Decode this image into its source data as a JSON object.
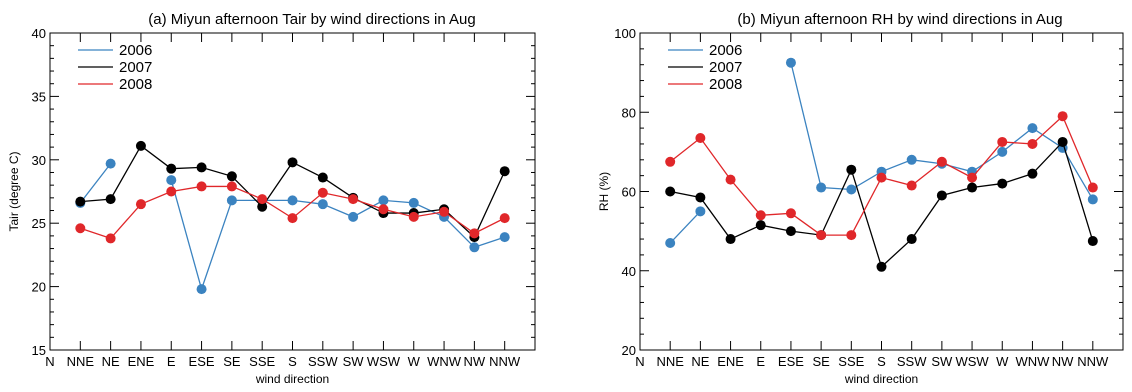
{
  "chart_data": [
    {
      "type": "line",
      "title": "(a) Miyun afternoon Tair by wind directions in Aug",
      "xlabel": "wind direction",
      "ylabel": "Tair (degree C)",
      "ylim": [
        15,
        40
      ],
      "yticks": [
        "15",
        "20",
        "25",
        "30",
        "35",
        "40"
      ],
      "categories": [
        "N",
        "NNE",
        "NE",
        "ENE",
        "E",
        "ESE",
        "SE",
        "SSE",
        "S",
        "SSW",
        "SW",
        "WSW",
        "W",
        "WNW",
        "NW",
        "NNW"
      ],
      "legend_position": "top-left",
      "grid": false,
      "series": [
        {
          "name": "2006",
          "color": "#3b83c0",
          "values": [
            null,
            26.6,
            29.7,
            null,
            28.4,
            19.8,
            26.8,
            26.8,
            26.8,
            26.5,
            25.5,
            26.8,
            26.6,
            25.5,
            23.1,
            23.9
          ]
        },
        {
          "name": "2007",
          "color": "#000000",
          "values": [
            null,
            26.7,
            26.9,
            31.1,
            29.3,
            29.4,
            28.7,
            26.3,
            29.8,
            28.6,
            27.0,
            25.8,
            25.8,
            26.1,
            23.9,
            29.1
          ]
        },
        {
          "name": "2008",
          "color": "#e0272a",
          "values": [
            null,
            24.6,
            23.8,
            26.5,
            27.5,
            27.9,
            27.9,
            26.9,
            25.4,
            27.4,
            26.9,
            26.1,
            25.5,
            25.9,
            24.2,
            25.4
          ]
        }
      ]
    },
    {
      "type": "line",
      "title": "(b) Miyun afternoon RH by wind directions in Aug",
      "xlabel": "wind direction",
      "ylabel": "RH (%)",
      "ylim": [
        20,
        100
      ],
      "yticks": [
        "20",
        "40",
        "60",
        "80",
        "100"
      ],
      "categories": [
        "N",
        "NNE",
        "NE",
        "ENE",
        "E",
        "ESE",
        "SE",
        "SSE",
        "S",
        "SSW",
        "SW",
        "WSW",
        "W",
        "WNW",
        "NW",
        "NNW"
      ],
      "legend_position": "top-left",
      "grid": false,
      "series": [
        {
          "name": "2006",
          "color": "#3b83c0",
          "values": [
            null,
            47,
            55,
            null,
            null,
            92.5,
            61,
            60.5,
            65,
            68,
            67,
            65,
            70,
            76,
            71,
            58
          ]
        },
        {
          "name": "2007",
          "color": "#000000",
          "values": [
            null,
            60,
            58.5,
            48,
            51.5,
            50,
            49,
            65.5,
            41,
            48,
            59,
            61,
            62,
            64.5,
            72.5,
            47.5
          ]
        },
        {
          "name": "2008",
          "color": "#e0272a",
          "values": [
            null,
            67.5,
            73.5,
            63,
            54,
            54.5,
            49,
            49,
            63.5,
            61.5,
            67.5,
            63.5,
            72.5,
            72,
            79,
            61
          ]
        }
      ]
    }
  ]
}
